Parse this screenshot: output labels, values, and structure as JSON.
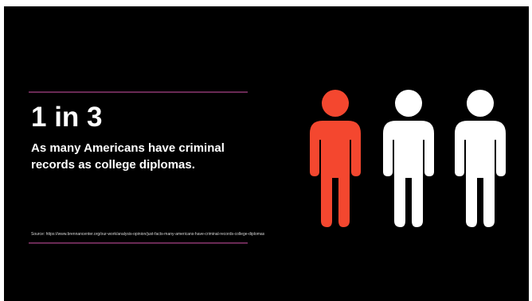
{
  "stat": {
    "headline": "1 in 3",
    "subhead": "As many Americans have criminal records as college diplomas.",
    "source": "Source: https://www.brennancenter.org/our-work/analysis-opinion/just-facts-many-americans-have-criminal-records-college-diplomas"
  },
  "figures": {
    "highlighted_count": 1,
    "total_count": 3,
    "colors": {
      "highlight": "#f4472f",
      "default": "#ffffff",
      "background": "#000000",
      "rule": "#6a2a55"
    },
    "icon": "person-icon"
  }
}
